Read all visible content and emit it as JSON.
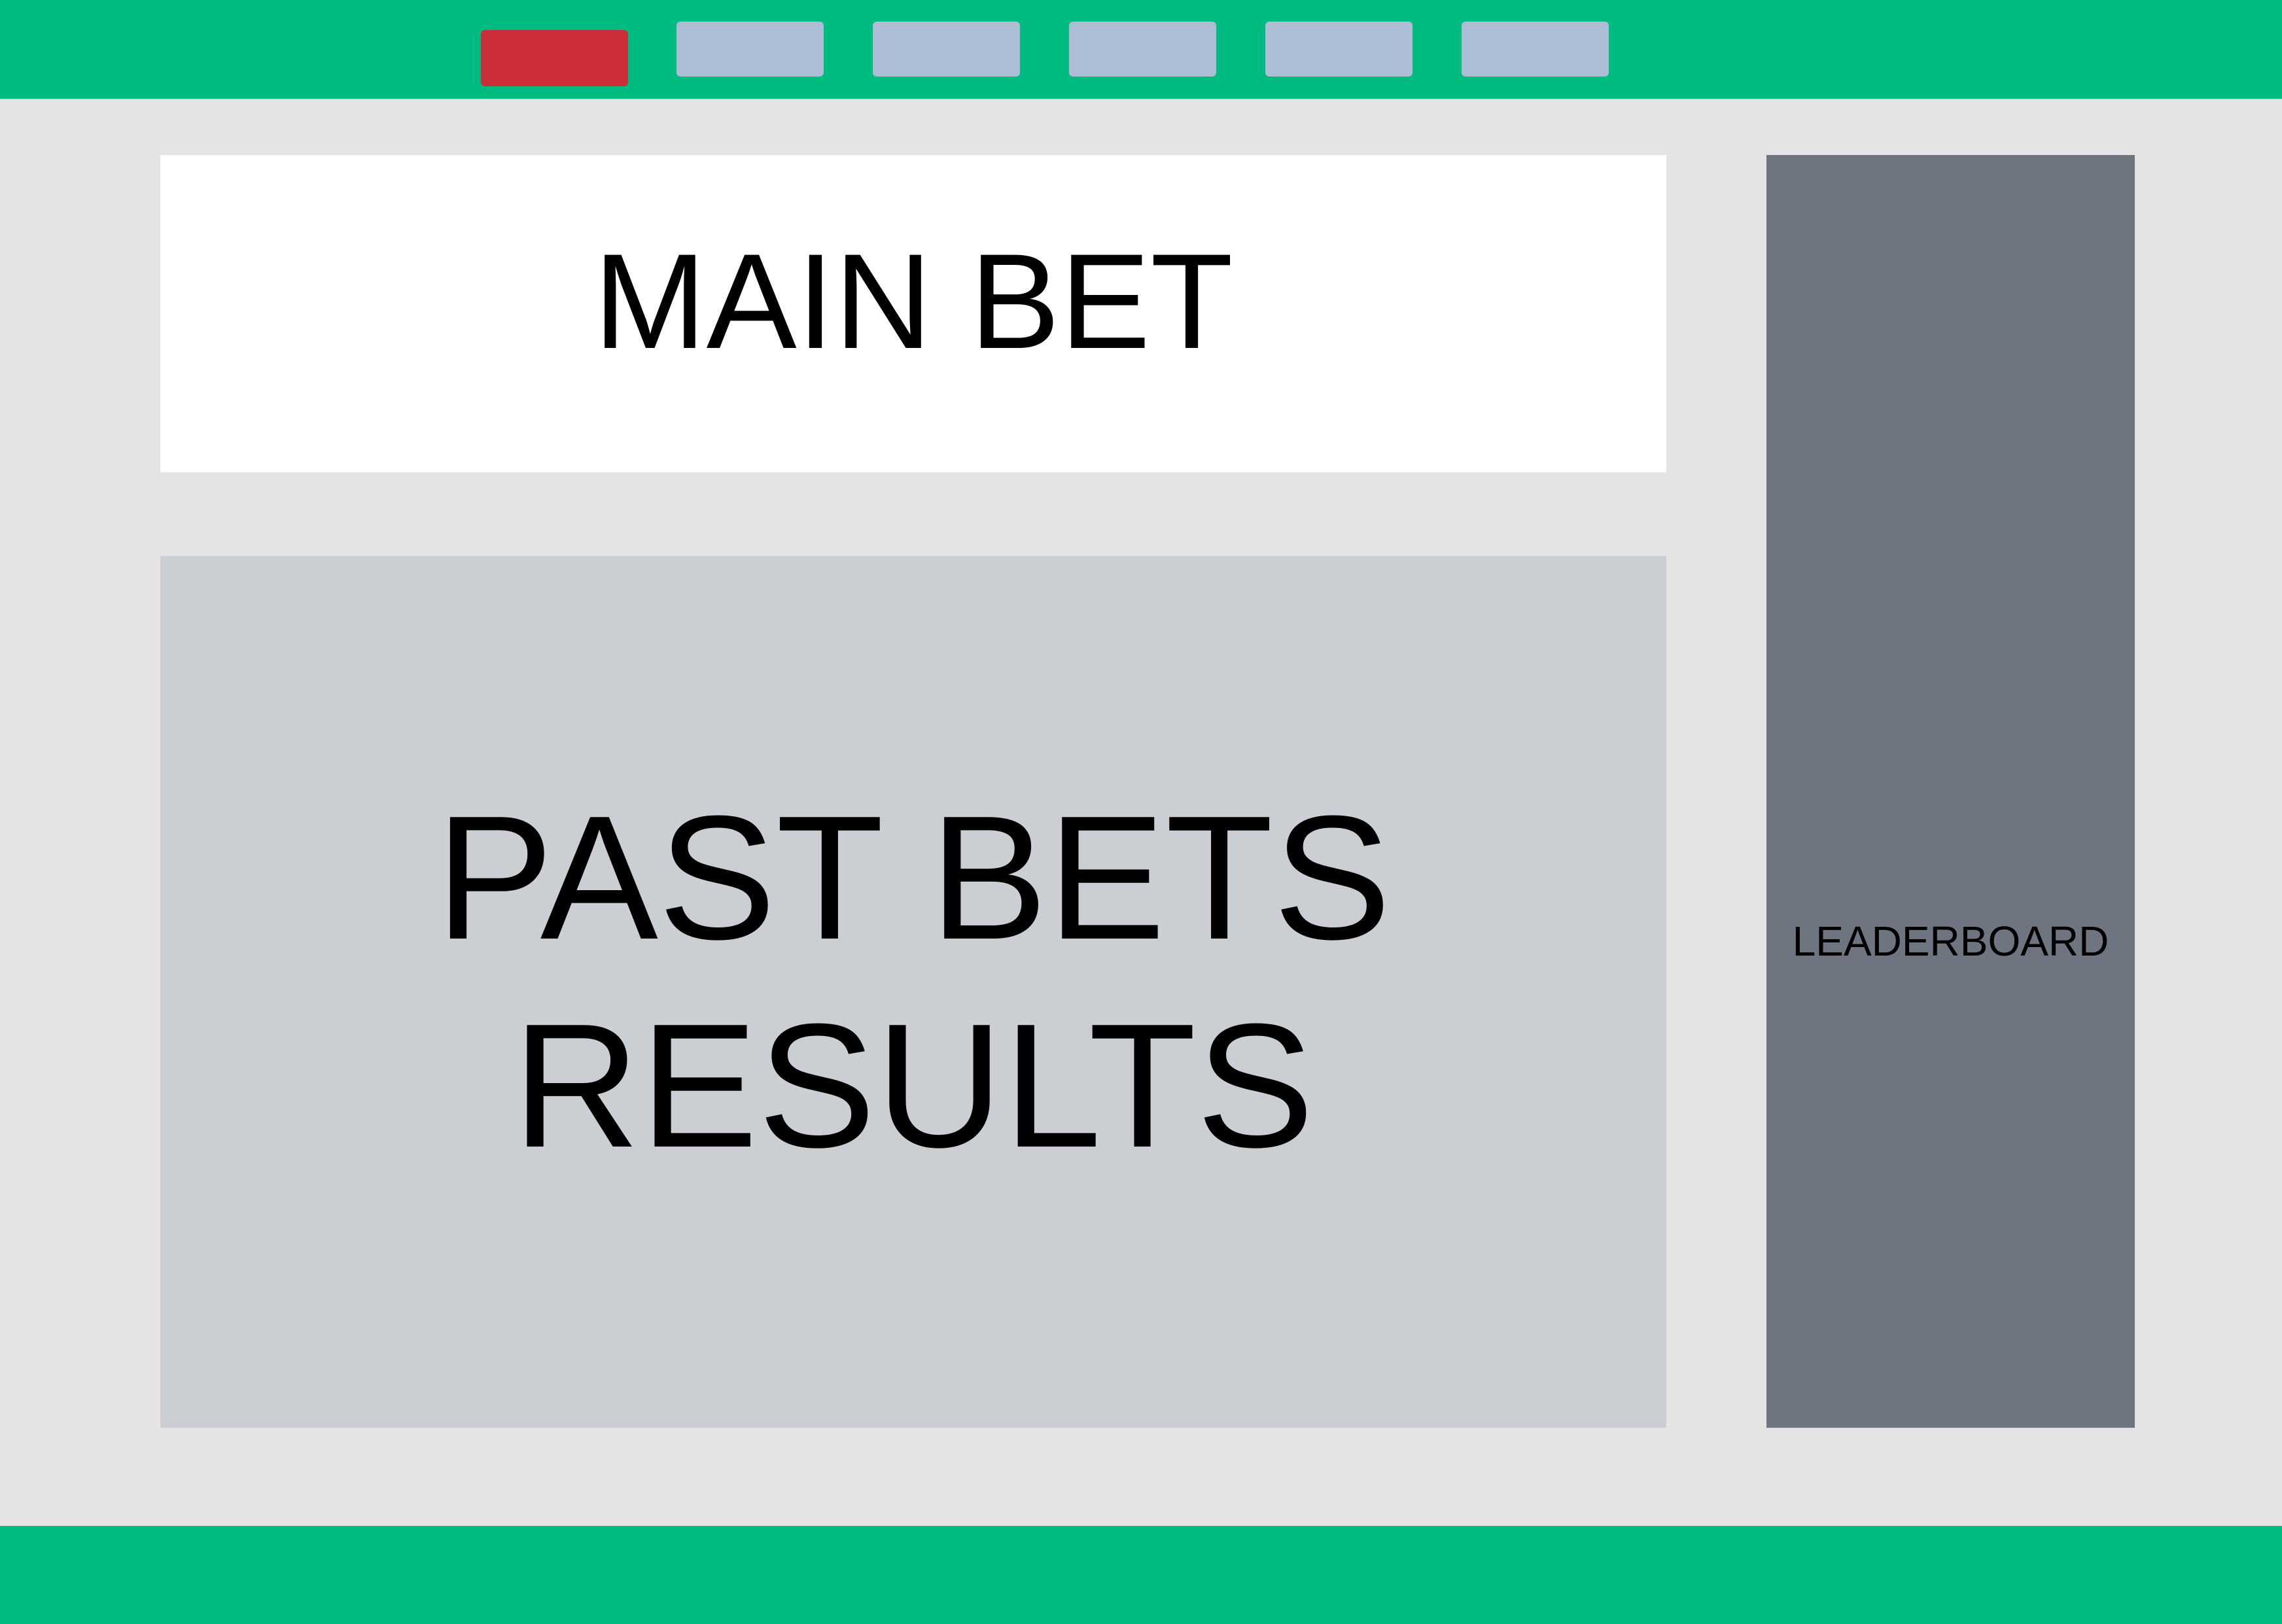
{
  "header": {
    "background_color": "#00bb80",
    "nav_buttons": [
      {
        "label": "",
        "active": true,
        "color": "#cc2e39"
      },
      {
        "label": "",
        "active": false,
        "color": "#aebdd6"
      },
      {
        "label": "",
        "active": false,
        "color": "#aebdd6"
      },
      {
        "label": "",
        "active": false,
        "color": "#aebdd6"
      },
      {
        "label": "",
        "active": false,
        "color": "#aebdd6"
      },
      {
        "label": "",
        "active": false,
        "color": "#aebdd6"
      }
    ]
  },
  "main": {
    "main_bet": {
      "label": "MAIN BET",
      "background_color": "#ffffff"
    },
    "past_bets": {
      "line1": "PAST BETS",
      "line2": "RESULTS",
      "background_color": "#cbcfd4"
    }
  },
  "sidebar": {
    "leaderboard": {
      "label": "LEADERBOARD",
      "background_color": "#6f7580"
    }
  },
  "footer": {
    "background_color": "#00bb80"
  }
}
